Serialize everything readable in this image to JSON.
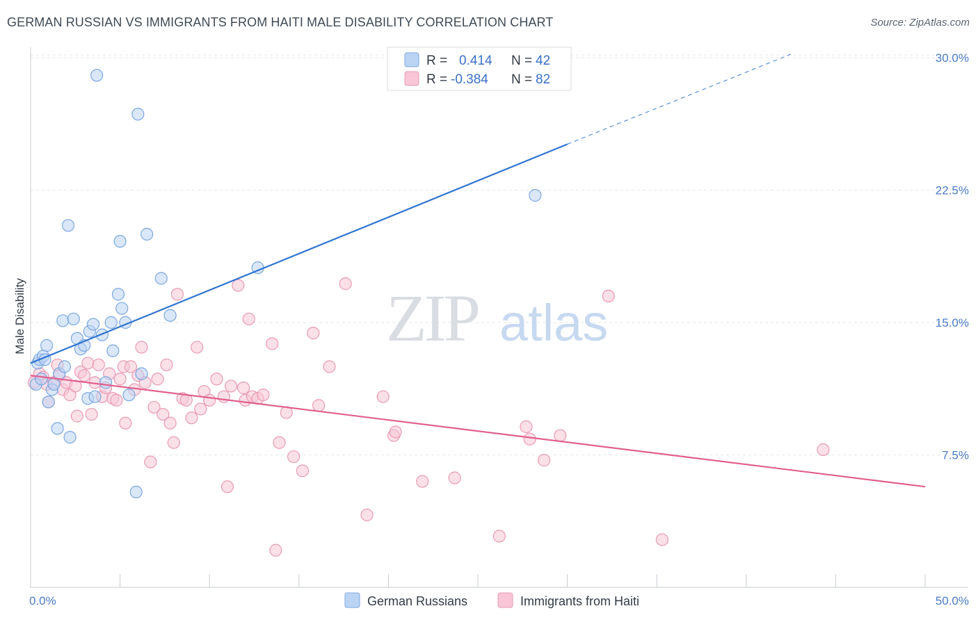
{
  "title": "GERMAN RUSSIAN VS IMMIGRANTS FROM HAITI MALE DISABILITY CORRELATION CHART",
  "source": "Source: ZipAtlas.com",
  "watermark": {
    "zip": "ZIP",
    "atlas": "atlas"
  },
  "legend": {
    "r_label": "R =",
    "n_label": "N =",
    "items": [
      {
        "r": "0.414",
        "n": "42"
      },
      {
        "r": "-0.384",
        "n": "82"
      }
    ]
  },
  "bottom_legend": [
    "German Russians",
    "Immigrants from Haiti"
  ],
  "colors": {
    "blue_fill": "#bcd4f4",
    "blue_stroke": "#7aa7e0",
    "blue_line": "#2f74d0",
    "pink_fill": "#f8c6d6",
    "pink_stroke": "#e99ab5",
    "pink_line": "#e0608e",
    "axis_text": "#4a7cc9"
  },
  "chart_data": {
    "type": "scatter",
    "title": "GERMAN RUSSIAN VS IMMIGRANTS FROM HAITI MALE DISABILITY CORRELATION CHART",
    "xlabel": "",
    "ylabel": "Male Disability",
    "xlim": [
      0,
      50
    ],
    "ylim": [
      0,
      31.5
    ],
    "x_tick_labels": [
      "0.0%",
      "50.0%"
    ],
    "y_ticks": [
      7.5,
      15.0,
      22.5,
      30.0
    ],
    "y_tick_labels": [
      "7.5%",
      "15.0%",
      "22.5%",
      "30.0%"
    ],
    "grid": true,
    "legend_position": "top-center",
    "series": [
      {
        "name": "German Russians",
        "r": 0.414,
        "n": 42,
        "trend": {
          "x0": 0,
          "y0": 12.7,
          "x1": 30,
          "y1": 25.1,
          "dashed_to": [
            42.5,
            30.2
          ]
        },
        "points": [
          [
            0.3,
            11.5
          ],
          [
            0.4,
            12.7
          ],
          [
            0.5,
            12.9
          ],
          [
            0.6,
            11.8
          ],
          [
            0.7,
            13.1
          ],
          [
            0.8,
            12.9
          ],
          [
            0.9,
            13.7
          ],
          [
            1.0,
            10.5
          ],
          [
            1.2,
            11.2
          ],
          [
            1.3,
            11.5
          ],
          [
            1.5,
            9.0
          ],
          [
            1.6,
            12.1
          ],
          [
            1.8,
            15.1
          ],
          [
            1.9,
            12.5
          ],
          [
            2.1,
            20.5
          ],
          [
            2.2,
            8.5
          ],
          [
            2.4,
            15.2
          ],
          [
            2.6,
            14.1
          ],
          [
            2.8,
            13.5
          ],
          [
            3.0,
            13.7
          ],
          [
            3.2,
            10.7
          ],
          [
            3.3,
            14.5
          ],
          [
            3.5,
            14.9
          ],
          [
            3.6,
            10.8
          ],
          [
            3.7,
            29.0
          ],
          [
            4.0,
            14.3
          ],
          [
            4.2,
            11.6
          ],
          [
            4.5,
            15.0
          ],
          [
            4.6,
            13.4
          ],
          [
            4.9,
            16.6
          ],
          [
            5.0,
            19.6
          ],
          [
            5.1,
            15.8
          ],
          [
            5.3,
            15.0
          ],
          [
            5.5,
            10.9
          ],
          [
            5.9,
            5.4
          ],
          [
            6.0,
            26.8
          ],
          [
            6.2,
            12.1
          ],
          [
            6.5,
            20.0
          ],
          [
            7.3,
            17.5
          ],
          [
            7.8,
            15.4
          ],
          [
            12.7,
            18.1
          ],
          [
            28.2,
            22.2
          ]
        ]
      },
      {
        "name": "Immigrants from Haiti",
        "r": -0.384,
        "n": 82,
        "trend": {
          "x0": 0,
          "y0": 12.0,
          "x1": 50,
          "y1": 5.7
        },
        "points": [
          [
            0.2,
            11.6
          ],
          [
            0.5,
            12.1
          ],
          [
            0.7,
            11.9
          ],
          [
            0.9,
            11.5
          ],
          [
            1.0,
            10.5
          ],
          [
            1.3,
            11.6
          ],
          [
            1.5,
            12.6
          ],
          [
            1.6,
            12.0
          ],
          [
            1.8,
            11.2
          ],
          [
            2.0,
            11.6
          ],
          [
            2.2,
            10.9
          ],
          [
            2.5,
            11.4
          ],
          [
            2.6,
            9.7
          ],
          [
            2.8,
            12.2
          ],
          [
            3.0,
            12.0
          ],
          [
            3.2,
            12.7
          ],
          [
            3.4,
            9.8
          ],
          [
            3.6,
            11.6
          ],
          [
            3.8,
            12.6
          ],
          [
            4.0,
            10.8
          ],
          [
            4.2,
            11.3
          ],
          [
            4.4,
            12.1
          ],
          [
            4.6,
            10.7
          ],
          [
            4.8,
            10.6
          ],
          [
            5.0,
            11.8
          ],
          [
            5.2,
            12.5
          ],
          [
            5.3,
            9.3
          ],
          [
            5.6,
            12.5
          ],
          [
            5.8,
            11.2
          ],
          [
            6.0,
            12.0
          ],
          [
            6.2,
            13.6
          ],
          [
            6.4,
            11.6
          ],
          [
            6.7,
            7.1
          ],
          [
            6.9,
            10.2
          ],
          [
            7.1,
            11.8
          ],
          [
            7.4,
            9.8
          ],
          [
            7.6,
            12.6
          ],
          [
            7.8,
            9.3
          ],
          [
            8.0,
            8.2
          ],
          [
            8.2,
            16.6
          ],
          [
            8.5,
            10.7
          ],
          [
            8.7,
            10.6
          ],
          [
            9.0,
            9.6
          ],
          [
            9.3,
            13.6
          ],
          [
            9.5,
            10.1
          ],
          [
            9.7,
            11.1
          ],
          [
            10.0,
            10.6
          ],
          [
            10.4,
            11.8
          ],
          [
            10.8,
            10.8
          ],
          [
            11.0,
            5.7
          ],
          [
            11.2,
            11.4
          ],
          [
            11.6,
            17.1
          ],
          [
            11.9,
            11.3
          ],
          [
            12.0,
            10.6
          ],
          [
            12.2,
            15.2
          ],
          [
            12.4,
            10.8
          ],
          [
            12.7,
            10.7
          ],
          [
            13.0,
            10.9
          ],
          [
            13.5,
            13.8
          ],
          [
            13.7,
            2.1
          ],
          [
            13.9,
            8.2
          ],
          [
            14.3,
            9.9
          ],
          [
            14.7,
            7.4
          ],
          [
            15.2,
            6.6
          ],
          [
            15.8,
            14.4
          ],
          [
            16.1,
            10.3
          ],
          [
            16.7,
            12.5
          ],
          [
            17.6,
            17.2
          ],
          [
            18.8,
            4.1
          ],
          [
            19.7,
            10.8
          ],
          [
            20.3,
            8.6
          ],
          [
            20.4,
            8.8
          ],
          [
            21.9,
            6.0
          ],
          [
            23.7,
            6.2
          ],
          [
            26.2,
            2.9
          ],
          [
            27.7,
            9.1
          ],
          [
            27.9,
            8.4
          ],
          [
            28.7,
            7.2
          ],
          [
            29.6,
            8.6
          ],
          [
            32.3,
            16.5
          ],
          [
            35.3,
            2.7
          ],
          [
            44.3,
            7.8
          ]
        ]
      }
    ]
  }
}
